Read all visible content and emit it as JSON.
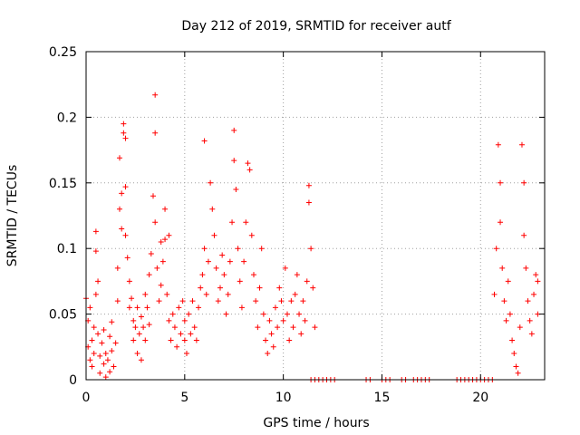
{
  "chart_data": {
    "type": "scatter",
    "title": "Day 212 of 2019, SRMTID for receiver autf",
    "xlabel": "GPS time / hours",
    "ylabel": "SRMTID / TECUs",
    "xlim": [
      0,
      23.25
    ],
    "ylim": [
      0,
      0.25
    ],
    "x_ticks": [
      0,
      5,
      10,
      15,
      20
    ],
    "x_tick_labels": [
      "0",
      "5",
      "10",
      "15",
      "20"
    ],
    "y_ticks": [
      0,
      0.05,
      0.1,
      0.15,
      0.2,
      0.25
    ],
    "y_tick_labels": [
      "0",
      "0.05",
      "0.1",
      "0.15",
      "0.2",
      "0.25"
    ],
    "grid": true,
    "marker": "+",
    "series": [
      {
        "name": "SRMTID",
        "color": "#ff0000",
        "points": [
          [
            0.0,
            0.062
          ],
          [
            0.1,
            0.045
          ],
          [
            0.1,
            0.025
          ],
          [
            0.2,
            0.015
          ],
          [
            0.2,
            0.055
          ],
          [
            0.3,
            0.03
          ],
          [
            0.3,
            0.01
          ],
          [
            0.4,
            0.04
          ],
          [
            0.4,
            0.02
          ],
          [
            0.5,
            0.113
          ],
          [
            0.5,
            0.098
          ],
          [
            0.5,
            0.065
          ],
          [
            0.6,
            0.075
          ],
          [
            0.6,
            0.035
          ],
          [
            0.7,
            0.018
          ],
          [
            0.7,
            0.005
          ],
          [
            0.8,
            0.028
          ],
          [
            0.9,
            0.012
          ],
          [
            0.9,
            0.038
          ],
          [
            1.0,
            0.02
          ],
          [
            1.0,
            0.002
          ],
          [
            1.1,
            0.015
          ],
          [
            1.2,
            0.006
          ],
          [
            1.2,
            0.033
          ],
          [
            1.3,
            0.022
          ],
          [
            1.3,
            0.044
          ],
          [
            1.4,
            0.01
          ],
          [
            1.5,
            0.028
          ],
          [
            1.6,
            0.06
          ],
          [
            1.6,
            0.085
          ],
          [
            1.7,
            0.13
          ],
          [
            1.7,
            0.169
          ],
          [
            1.8,
            0.142
          ],
          [
            1.8,
            0.115
          ],
          [
            1.9,
            0.195
          ],
          [
            1.9,
            0.188
          ],
          [
            2.0,
            0.147
          ],
          [
            2.0,
            0.184
          ],
          [
            2.0,
            0.11
          ],
          [
            2.1,
            0.093
          ],
          [
            2.2,
            0.075
          ],
          [
            2.2,
            0.055
          ],
          [
            2.3,
            0.062
          ],
          [
            2.4,
            0.045
          ],
          [
            2.4,
            0.03
          ],
          [
            2.5,
            0.04
          ],
          [
            2.6,
            0.02
          ],
          [
            2.6,
            0.055
          ],
          [
            2.7,
            0.035
          ],
          [
            2.8,
            0.015
          ],
          [
            2.8,
            0.048
          ],
          [
            2.9,
            0.04
          ],
          [
            3.0,
            0.03
          ],
          [
            3.0,
            0.065
          ],
          [
            3.1,
            0.055
          ],
          [
            3.2,
            0.08
          ],
          [
            3.2,
            0.042
          ],
          [
            3.3,
            0.096
          ],
          [
            3.4,
            0.14
          ],
          [
            3.5,
            0.217
          ],
          [
            3.5,
            0.188
          ],
          [
            3.5,
            0.12
          ],
          [
            3.6,
            0.085
          ],
          [
            3.7,
            0.06
          ],
          [
            3.8,
            0.072
          ],
          [
            3.8,
            0.105
          ],
          [
            3.9,
            0.09
          ],
          [
            4.0,
            0.13
          ],
          [
            4.0,
            0.107
          ],
          [
            4.1,
            0.065
          ],
          [
            4.2,
            0.11
          ],
          [
            4.2,
            0.045
          ],
          [
            4.3,
            0.03
          ],
          [
            4.4,
            0.05
          ],
          [
            4.5,
            0.04
          ],
          [
            4.6,
            0.025
          ],
          [
            4.7,
            0.055
          ],
          [
            4.8,
            0.035
          ],
          [
            4.9,
            0.06
          ],
          [
            5.0,
            0.03
          ],
          [
            5.0,
            0.045
          ],
          [
            5.1,
            0.02
          ],
          [
            5.2,
            0.05
          ],
          [
            5.3,
            0.035
          ],
          [
            5.4,
            0.06
          ],
          [
            5.5,
            0.04
          ],
          [
            5.6,
            0.03
          ],
          [
            5.7,
            0.055
          ],
          [
            5.8,
            0.07
          ],
          [
            5.9,
            0.08
          ],
          [
            6.0,
            0.182
          ],
          [
            6.0,
            0.1
          ],
          [
            6.1,
            0.065
          ],
          [
            6.2,
            0.09
          ],
          [
            6.3,
            0.15
          ],
          [
            6.4,
            0.13
          ],
          [
            6.5,
            0.11
          ],
          [
            6.6,
            0.085
          ],
          [
            6.7,
            0.06
          ],
          [
            6.8,
            0.07
          ],
          [
            6.9,
            0.095
          ],
          [
            7.0,
            0.08
          ],
          [
            7.1,
            0.05
          ],
          [
            7.2,
            0.065
          ],
          [
            7.3,
            0.09
          ],
          [
            7.4,
            0.12
          ],
          [
            7.5,
            0.19
          ],
          [
            7.5,
            0.167
          ],
          [
            7.6,
            0.145
          ],
          [
            7.7,
            0.1
          ],
          [
            7.8,
            0.075
          ],
          [
            7.9,
            0.055
          ],
          [
            8.0,
            0.09
          ],
          [
            8.1,
            0.12
          ],
          [
            8.2,
            0.165
          ],
          [
            8.3,
            0.16
          ],
          [
            8.4,
            0.11
          ],
          [
            8.5,
            0.08
          ],
          [
            8.6,
            0.06
          ],
          [
            8.7,
            0.04
          ],
          [
            8.8,
            0.07
          ],
          [
            8.9,
            0.1
          ],
          [
            9.0,
            0.05
          ],
          [
            9.1,
            0.03
          ],
          [
            9.2,
            0.02
          ],
          [
            9.3,
            0.045
          ],
          [
            9.4,
            0.035
          ],
          [
            9.5,
            0.025
          ],
          [
            9.6,
            0.055
          ],
          [
            9.7,
            0.04
          ],
          [
            9.8,
            0.07
          ],
          [
            9.9,
            0.06
          ],
          [
            10.0,
            0.045
          ],
          [
            10.1,
            0.085
          ],
          [
            10.2,
            0.05
          ],
          [
            10.3,
            0.03
          ],
          [
            10.4,
            0.06
          ],
          [
            10.5,
            0.04
          ],
          [
            10.6,
            0.065
          ],
          [
            10.7,
            0.08
          ],
          [
            10.8,
            0.05
          ],
          [
            10.9,
            0.035
          ],
          [
            11.0,
            0.06
          ],
          [
            11.1,
            0.045
          ],
          [
            11.2,
            0.075
          ],
          [
            11.3,
            0.135
          ],
          [
            11.3,
            0.148
          ],
          [
            11.4,
            0.1
          ],
          [
            11.5,
            0.07
          ],
          [
            11.6,
            0.04
          ],
          [
            11.4,
            0.0
          ],
          [
            11.6,
            0.0
          ],
          [
            11.8,
            0.0
          ],
          [
            12.0,
            0.0
          ],
          [
            12.2,
            0.0
          ],
          [
            12.4,
            0.0
          ],
          [
            12.6,
            0.0
          ],
          [
            14.2,
            0.0
          ],
          [
            14.4,
            0.0
          ],
          [
            15.0,
            0.0
          ],
          [
            15.2,
            0.0
          ],
          [
            15.4,
            0.0
          ],
          [
            16.0,
            0.0
          ],
          [
            16.2,
            0.0
          ],
          [
            16.6,
            0.0
          ],
          [
            16.8,
            0.0
          ],
          [
            17.0,
            0.0
          ],
          [
            17.2,
            0.0
          ],
          [
            17.4,
            0.0
          ],
          [
            18.8,
            0.0
          ],
          [
            19.0,
            0.0
          ],
          [
            19.2,
            0.0
          ],
          [
            19.4,
            0.0
          ],
          [
            19.6,
            0.0
          ],
          [
            19.8,
            0.0
          ],
          [
            20.0,
            0.0
          ],
          [
            20.2,
            0.0
          ],
          [
            20.4,
            0.0
          ],
          [
            20.6,
            0.0
          ],
          [
            20.7,
            0.065
          ],
          [
            20.8,
            0.1
          ],
          [
            20.9,
            0.179
          ],
          [
            21.0,
            0.15
          ],
          [
            21.0,
            0.12
          ],
          [
            21.1,
            0.085
          ],
          [
            21.2,
            0.06
          ],
          [
            21.3,
            0.045
          ],
          [
            21.4,
            0.075
          ],
          [
            21.5,
            0.05
          ],
          [
            21.6,
            0.03
          ],
          [
            21.7,
            0.02
          ],
          [
            21.8,
            0.01
          ],
          [
            21.9,
            0.005
          ],
          [
            22.0,
            0.04
          ],
          [
            22.1,
            0.179
          ],
          [
            22.2,
            0.15
          ],
          [
            22.2,
            0.11
          ],
          [
            22.3,
            0.085
          ],
          [
            22.4,
            0.06
          ],
          [
            22.5,
            0.045
          ],
          [
            22.6,
            0.035
          ],
          [
            22.7,
            0.065
          ],
          [
            22.8,
            0.08
          ],
          [
            22.9,
            0.075
          ],
          [
            22.9,
            0.05
          ]
        ]
      }
    ]
  }
}
